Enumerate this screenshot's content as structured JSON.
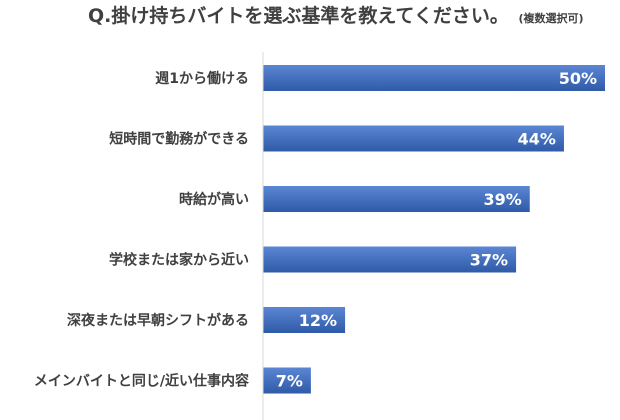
{
  "chart_data": {
    "type": "bar",
    "orientation": "horizontal",
    "title": "Q.掛け持ちバイトを選ぶ基準を教えてください。",
    "subtitle": "(複数選択可)",
    "categories": [
      "週1から働ける",
      "短時間で勤務ができる",
      "時給が高い",
      "学校または家から近い",
      "深夜または早朝シフトがある",
      "メインバイトと同じ/近い仕事内容"
    ],
    "values": [
      50,
      44,
      39,
      37,
      12,
      7
    ],
    "value_labels": [
      "50%",
      "44%",
      "39%",
      "37%",
      "12%",
      "7%"
    ],
    "unit": "%",
    "xlim": [
      0,
      50
    ],
    "grid": false,
    "legend": "none",
    "bar_color": "#4472c4",
    "bar_gradient_light": "#5b86d4",
    "bar_gradient_dark": "#2f5aa8",
    "axis_color": "#d9d9d9",
    "label_color": "#404040"
  }
}
